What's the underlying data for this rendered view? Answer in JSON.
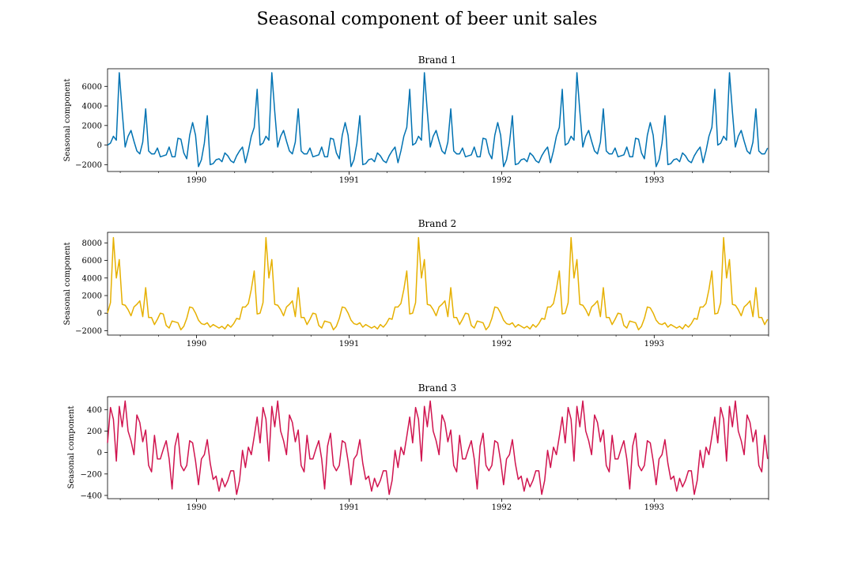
{
  "figure": {
    "suptitle": "Seasonal component of beer unit sales"
  },
  "chart_data": [
    {
      "type": "line",
      "title": "Brand 1",
      "xlabel": "",
      "ylabel": "Seasonal component",
      "color": "#0072b2",
      "x_start": "1989-06",
      "x_range": [
        "1989-06",
        "1993-10"
      ],
      "x_tick_labels": [
        "1990",
        "1991",
        "1992",
        "1993"
      ],
      "ylim": [
        -2700,
        7800
      ],
      "y_ticks": [
        -2000,
        0,
        2000,
        4000,
        6000
      ],
      "y_tick_labels": [
        "−2000",
        "0",
        "2000",
        "4000",
        "6000"
      ],
      "grid": false,
      "cycle_weeks": 52,
      "cycle_values": [
        0,
        200,
        900,
        500,
        7400,
        3400,
        -200,
        900,
        1500,
        400,
        -600,
        -900,
        300,
        3700,
        -600,
        -900,
        -900,
        -300,
        -1200,
        -1100,
        -1000,
        -200,
        -1200,
        -1200,
        700,
        600,
        -800,
        -1400,
        1000,
        2300,
        1000,
        -2200,
        -1500,
        200,
        3000,
        -2000,
        -1900,
        -1500,
        -1400,
        -1700,
        -800,
        -1100,
        -1600,
        -1800,
        -1100,
        -600,
        -200,
        -1800,
        -600,
        900,
        1800,
        5700
      ]
    },
    {
      "type": "line",
      "title": "Brand 2",
      "xlabel": "",
      "ylabel": "Seasonal component",
      "color": "#e6b000",
      "x_start": "1989-06",
      "x_range": [
        "1989-06",
        "1993-10"
      ],
      "x_tick_labels": [
        "1990",
        "1991",
        "1992",
        "1993"
      ],
      "ylim": [
        -2500,
        9200
      ],
      "y_ticks": [
        -2000,
        0,
        2000,
        4000,
        6000,
        8000
      ],
      "y_tick_labels": [
        "−2000",
        "0",
        "2000",
        "4000",
        "6000",
        "8000"
      ],
      "grid": false,
      "cycle_weeks": 52,
      "cycle_values": [
        0,
        1200,
        8600,
        4000,
        6100,
        1000,
        900,
        400,
        -300,
        700,
        1000,
        1400,
        -400,
        2900,
        -500,
        -500,
        -1300,
        -700,
        0,
        -100,
        -1400,
        -1700,
        -900,
        -1000,
        -1100,
        -1900,
        -1500,
        -600,
        700,
        600,
        0,
        -800,
        -1200,
        -1300,
        -1100,
        -1600,
        -1300,
        -1500,
        -1700,
        -1500,
        -1800,
        -1300,
        -1600,
        -1200,
        -600,
        -700,
        700,
        700,
        1100,
        2700,
        4800,
        -100
      ]
    },
    {
      "type": "line",
      "title": "Brand 3",
      "xlabel": "",
      "ylabel": "Seasonal component",
      "color": "#d0144f",
      "x_start": "1989-06",
      "x_range": [
        "1989-06",
        "1993-10"
      ],
      "x_tick_labels": [
        "1990",
        "1991",
        "1992",
        "1993"
      ],
      "ylim": [
        -430,
        520
      ],
      "y_ticks": [
        -400,
        -200,
        0,
        200,
        400
      ],
      "y_tick_labels": [
        "−400",
        "−200",
        "0",
        "200",
        "400"
      ],
      "grid": false,
      "cycle_weeks": 52,
      "cycle_values": [
        90,
        420,
        310,
        -80,
        430,
        240,
        480,
        200,
        110,
        -20,
        350,
        280,
        100,
        210,
        -120,
        -180,
        160,
        -60,
        -60,
        30,
        110,
        -60,
        -340,
        60,
        180,
        -120,
        -170,
        -120,
        110,
        90,
        -80,
        -300,
        -60,
        -20,
        120,
        -100,
        -250,
        -220,
        -360,
        -240,
        -320,
        -260,
        -170,
        -170,
        -390,
        -260,
        20,
        -140,
        50,
        -20,
        150,
        330
      ]
    }
  ]
}
